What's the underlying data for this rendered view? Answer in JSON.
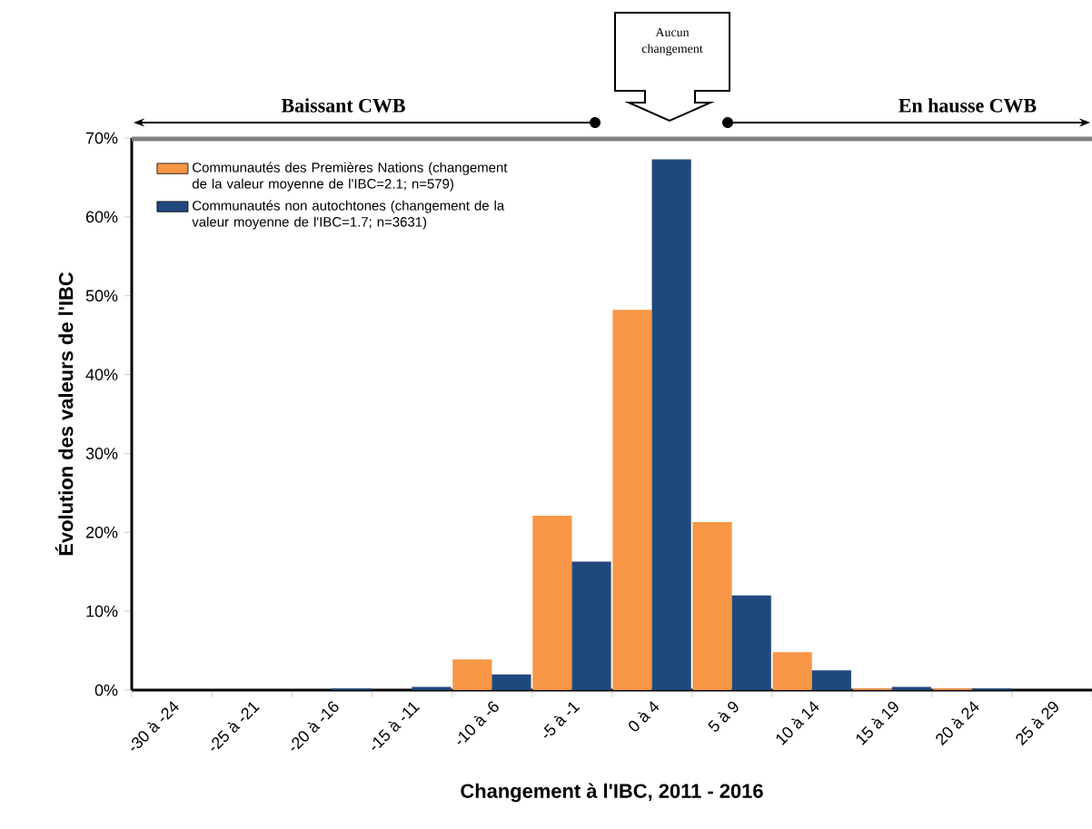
{
  "chart_data": {
    "type": "bar",
    "xlabel": "Changement à l'IBC, 2011 - 2016",
    "ylabel": "Évolution des valeurs de l'IBC",
    "categories": [
      "-30 à -24",
      "-25 à -21",
      "-20 à -16",
      "-15 à -11",
      "-10 à -6",
      "-5 à -1",
      "0 à 4",
      "5 à 9",
      "10 à 14",
      "15 à 19",
      "20 à 24",
      "25 à 29"
    ],
    "series": [
      {
        "name": "Communautés des Premières Nations (changement de la valeur moyenne de l'IBC=2.1; n=579)",
        "color": "#f79646",
        "values": [
          0,
          0,
          0,
          0,
          3.9,
          22.1,
          48.2,
          21.3,
          4.8,
          0.2,
          0.2,
          0
        ]
      },
      {
        "name": "Communautés non autochtones (changement de la valeur moyenne de l'IBC=1.7; n=3631)",
        "color": "#1f497d",
        "values": [
          0,
          0,
          0.2,
          0.4,
          2.0,
          16.3,
          67.3,
          12.0,
          2.5,
          0.4,
          0.2,
          0
        ]
      }
    ],
    "ylim": [
      0,
      70
    ],
    "yticks": [
      {
        "value": 0,
        "label": "0%"
      },
      {
        "value": 10,
        "label": "10%"
      },
      {
        "value": 20,
        "label": "20%"
      },
      {
        "value": 30,
        "label": "30%"
      },
      {
        "value": 40,
        "label": "40%"
      },
      {
        "value": 50,
        "label": "50%"
      },
      {
        "value": 60,
        "label": "60%"
      },
      {
        "value": 70,
        "label": "70%"
      }
    ],
    "annotations": [
      "Baissant CWB",
      "Aucun changement",
      "En hausse CWB"
    ],
    "legend": "top left",
    "grid": false
  }
}
